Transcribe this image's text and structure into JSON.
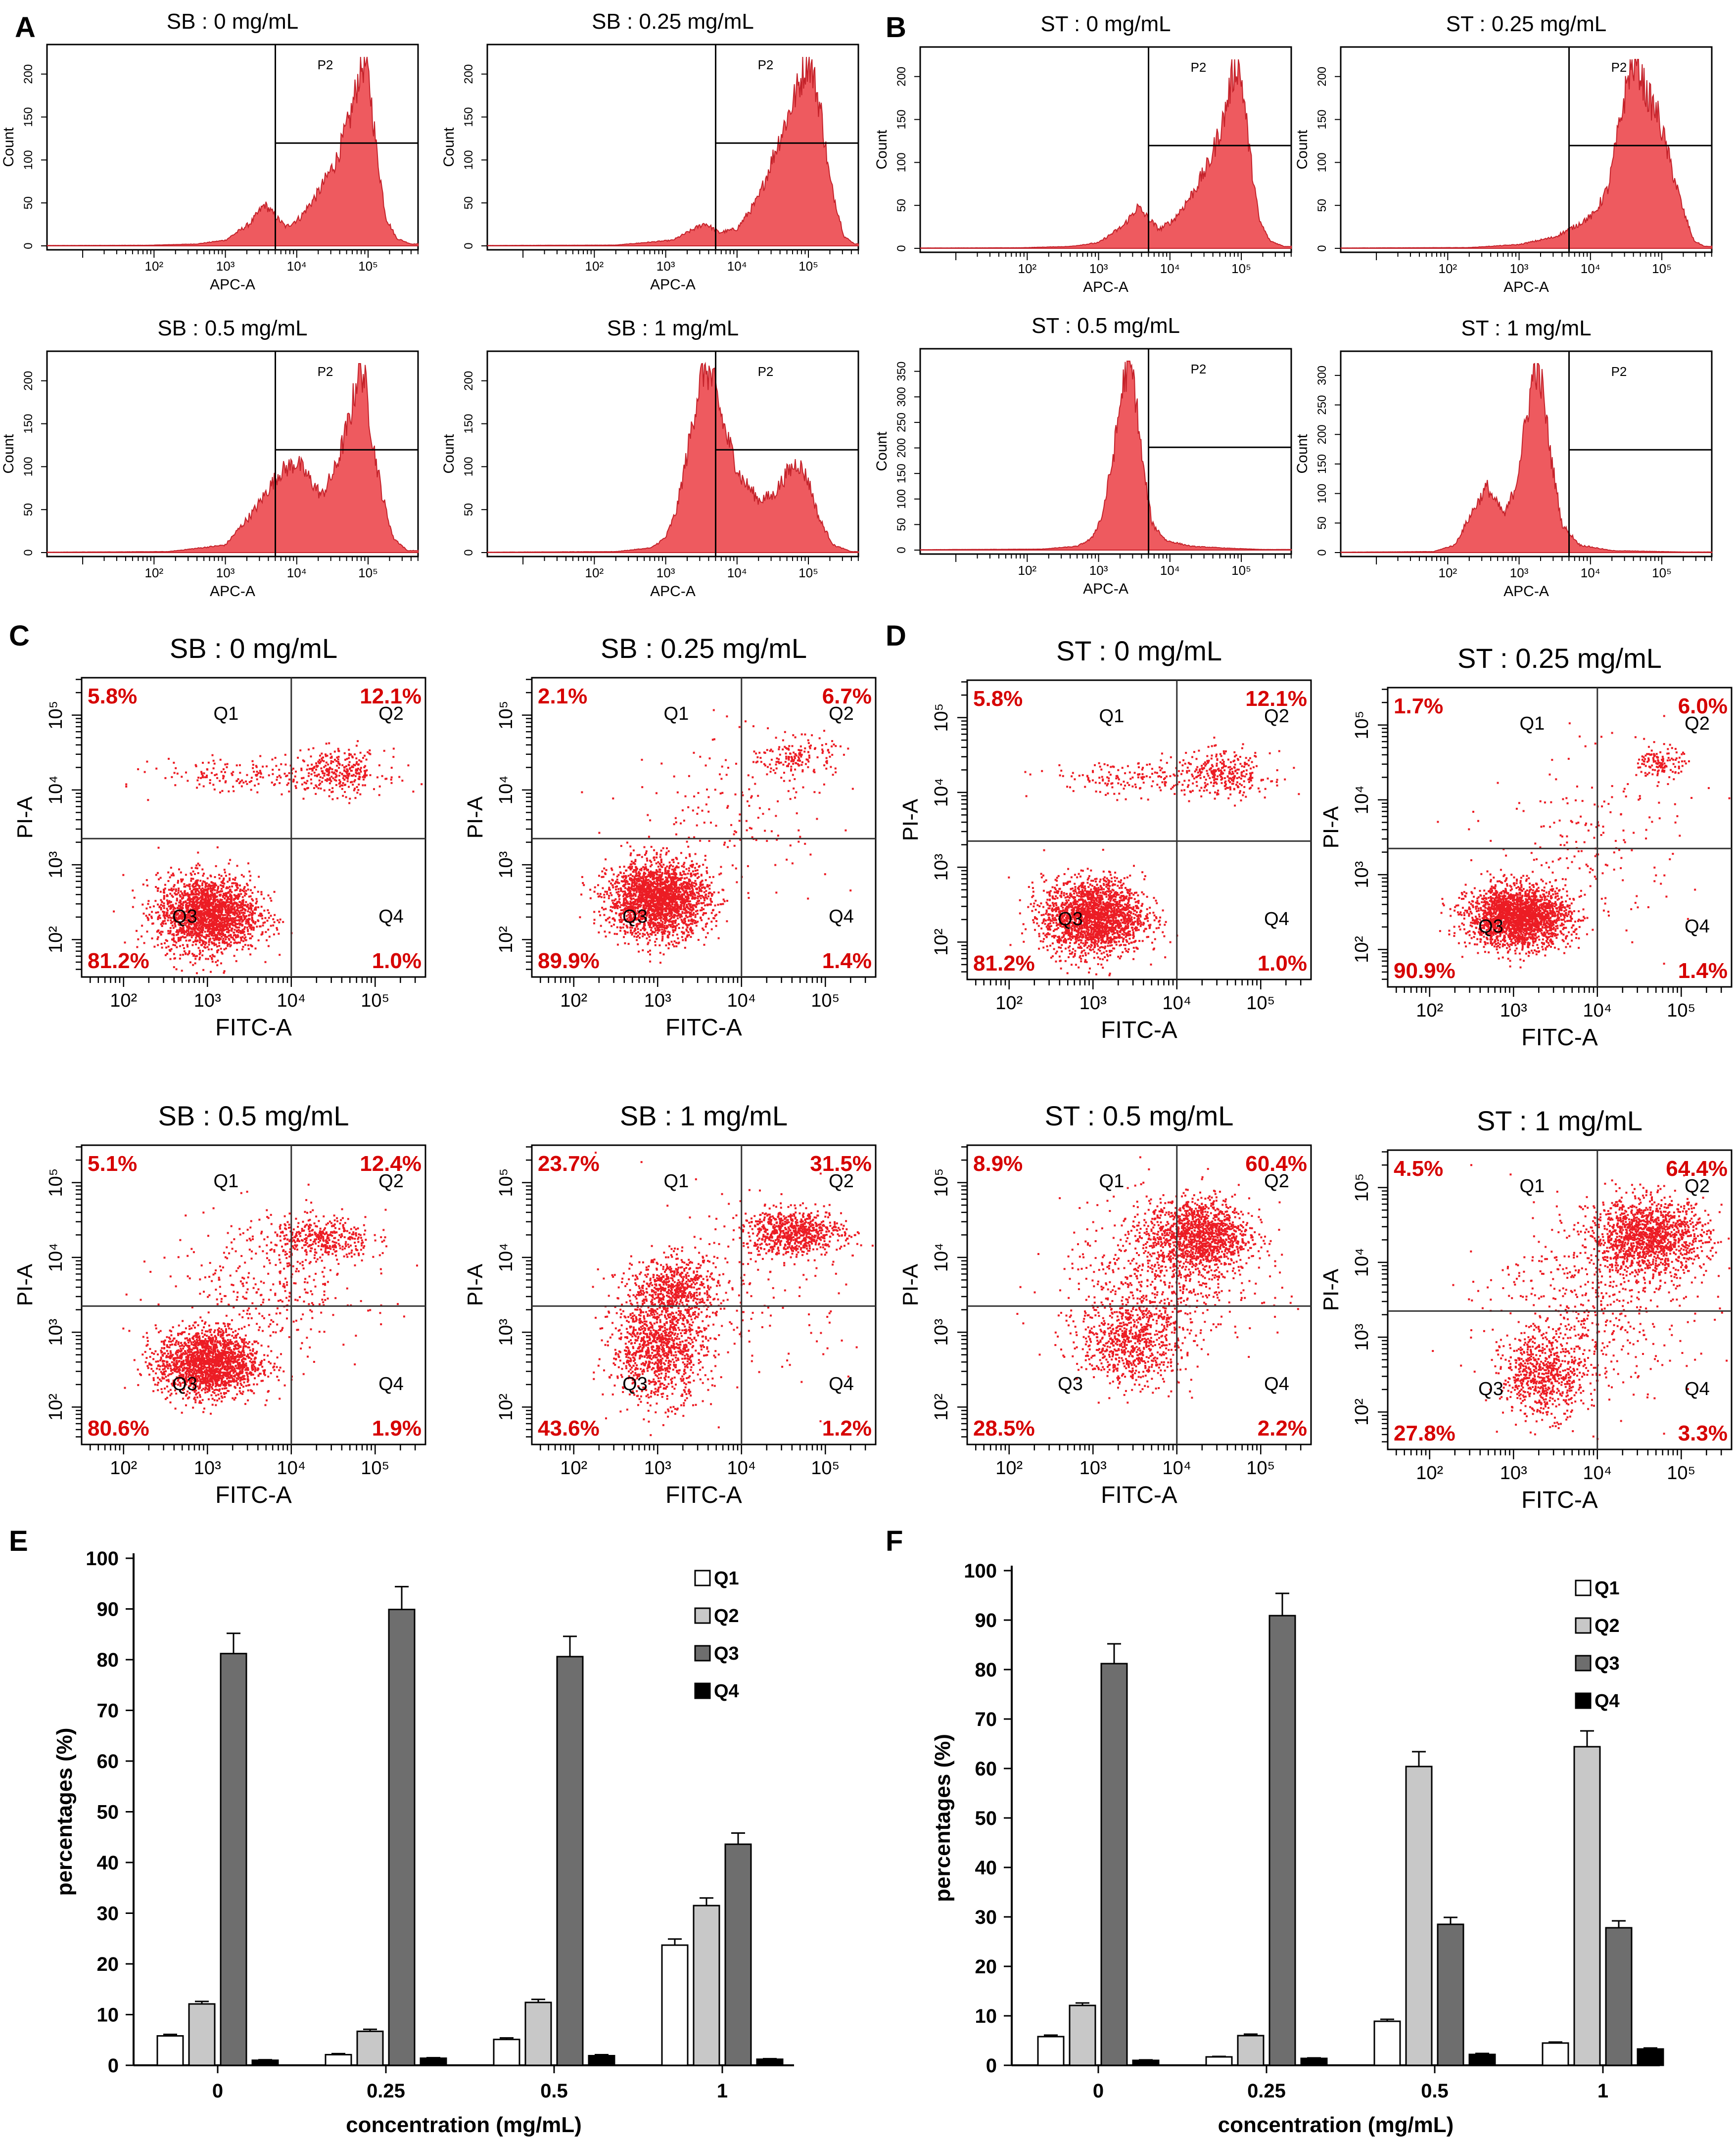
{
  "colors": {
    "histogram_fill": "#ee5a5f",
    "histogram_edge": "#c4222a",
    "dots": "#ec1c24",
    "quadrant_pct": "#d60000",
    "axis": "#000000",
    "bar_q1": "#ffffff",
    "bar_q2": "#c8c8c8",
    "bar_q3": "#6e6e6e",
    "bar_q4": "#000000"
  },
  "panel_letters": [
    "A",
    "B",
    "C",
    "D",
    "E",
    "F"
  ],
  "histograms": {
    "x_label": "APC-A",
    "y_label": "Count",
    "gate_label": "P2",
    "x_ticks": [
      "10²",
      "10³",
      "10⁴",
      "10⁵"
    ],
    "panels": [
      {
        "title": "SB : 0 mg/mL",
        "y_ticks": [
          "0",
          "50",
          "100",
          "150",
          "200"
        ],
        "profile": [
          [
            0.5,
            0.2
          ],
          [
            1.9,
            0.3
          ],
          [
            2.6,
            1.0
          ],
          [
            3.0,
            3.0
          ],
          [
            3.35,
            12.0
          ],
          [
            3.55,
            22.0
          ],
          [
            3.72,
            15.0
          ],
          [
            3.85,
            10.0
          ],
          [
            4.05,
            15.0
          ],
          [
            4.3,
            28.0
          ],
          [
            4.55,
            45.0
          ],
          [
            4.75,
            68.0
          ],
          [
            4.88,
            92.0
          ],
          [
            4.95,
            98.0
          ],
          [
            5.02,
            85.0
          ],
          [
            5.12,
            50.0
          ],
          [
            5.25,
            15.0
          ],
          [
            5.4,
            4.0
          ],
          [
            5.6,
            1.0
          ]
        ]
      },
      {
        "title": "SB : 0.25 mg/mL",
        "y_ticks": [
          "0",
          "50",
          "100",
          "150",
          "200"
        ],
        "profile": [
          [
            0.5,
            0.2
          ],
          [
            2.3,
            0.4
          ],
          [
            3.1,
            3.0
          ],
          [
            3.55,
            12.0
          ],
          [
            3.75,
            7.0
          ],
          [
            4.0,
            9.0
          ],
          [
            4.3,
            25.0
          ],
          [
            4.55,
            52.0
          ],
          [
            4.8,
            78.0
          ],
          [
            5.0,
            100.0
          ],
          [
            5.08,
            88.0
          ],
          [
            5.18,
            70.0
          ],
          [
            5.3,
            35.0
          ],
          [
            5.5,
            5.0
          ],
          [
            5.65,
            1.0
          ]
        ]
      },
      {
        "title": "SB : 0.5 mg/mL",
        "y_ticks": [
          "0",
          "50",
          "100",
          "150",
          "200"
        ],
        "profile": [
          [
            0.5,
            0.2
          ],
          [
            2.2,
            0.5
          ],
          [
            3.0,
            4.0
          ],
          [
            3.4,
            22.0
          ],
          [
            3.75,
            42.0
          ],
          [
            4.0,
            48.0
          ],
          [
            4.2,
            38.0
          ],
          [
            4.35,
            30.0
          ],
          [
            4.55,
            45.0
          ],
          [
            4.75,
            72.0
          ],
          [
            4.88,
            100.0
          ],
          [
            4.95,
            92.0
          ],
          [
            5.08,
            55.0
          ],
          [
            5.2,
            30.0
          ],
          [
            5.35,
            8.0
          ],
          [
            5.55,
            1.0
          ]
        ]
      },
      {
        "title": "SB : 1 mg/mL",
        "y_ticks": [
          "0",
          "50",
          "100",
          "150",
          "200"
        ],
        "profile": [
          [
            0.5,
            0.2
          ],
          [
            2.3,
            0.5
          ],
          [
            2.8,
            2.5
          ],
          [
            3.0,
            8.0
          ],
          [
            3.15,
            22.0
          ],
          [
            3.3,
            52.0
          ],
          [
            3.45,
            85.0
          ],
          [
            3.55,
            100.0
          ],
          [
            3.68,
            88.0
          ],
          [
            3.85,
            62.0
          ],
          [
            4.05,
            40.0
          ],
          [
            4.3,
            28.0
          ],
          [
            4.5,
            30.0
          ],
          [
            4.7,
            42.0
          ],
          [
            4.85,
            48.0
          ],
          [
            5.0,
            38.0
          ],
          [
            5.15,
            18.0
          ],
          [
            5.35,
            4.0
          ],
          [
            5.6,
            0.5
          ]
        ]
      },
      {
        "title": "ST : 0 mg/mL",
        "y_ticks": [
          "0",
          "50",
          "100",
          "150",
          "200"
        ],
        "profile": [
          [
            0.5,
            0.2
          ],
          [
            1.9,
            0.3
          ],
          [
            2.6,
            1.0
          ],
          [
            3.0,
            3.0
          ],
          [
            3.35,
            12.0
          ],
          [
            3.55,
            22.0
          ],
          [
            3.72,
            15.0
          ],
          [
            3.85,
            10.0
          ],
          [
            4.05,
            15.0
          ],
          [
            4.3,
            28.0
          ],
          [
            4.55,
            45.0
          ],
          [
            4.75,
            68.0
          ],
          [
            4.88,
            92.0
          ],
          [
            4.95,
            98.0
          ],
          [
            5.02,
            85.0
          ],
          [
            5.12,
            50.0
          ],
          [
            5.25,
            15.0
          ],
          [
            5.4,
            4.0
          ],
          [
            5.6,
            1.0
          ]
        ]
      },
      {
        "title": "ST : 0.25 mg/mL",
        "y_ticks": [
          "0",
          "50",
          "100",
          "150",
          "200"
        ],
        "profile": [
          [
            0.5,
            0.2
          ],
          [
            2.3,
            0.4
          ],
          [
            3.0,
            2.0
          ],
          [
            3.5,
            6.0
          ],
          [
            3.8,
            12.0
          ],
          [
            4.05,
            18.0
          ],
          [
            4.25,
            32.0
          ],
          [
            4.42,
            68.0
          ],
          [
            4.55,
            95.0
          ],
          [
            4.65,
            100.0
          ],
          [
            4.78,
            82.0
          ],
          [
            4.95,
            70.0
          ],
          [
            5.12,
            45.0
          ],
          [
            5.3,
            20.0
          ],
          [
            5.45,
            4.0
          ],
          [
            5.6,
            1.0
          ]
        ]
      },
      {
        "title": "ST : 0.5 mg/mL",
        "y_ticks": [
          "0",
          "50",
          "100",
          "150",
          "200",
          "250",
          "300",
          "350"
        ],
        "profile": [
          [
            0.5,
            0.2
          ],
          [
            2.2,
            0.5
          ],
          [
            2.7,
            2.0
          ],
          [
            2.9,
            6.0
          ],
          [
            3.05,
            18.0
          ],
          [
            3.2,
            48.0
          ],
          [
            3.33,
            85.0
          ],
          [
            3.42,
            100.0
          ],
          [
            3.5,
            88.0
          ],
          [
            3.62,
            45.0
          ],
          [
            3.75,
            14.0
          ],
          [
            3.95,
            5.0
          ],
          [
            4.3,
            2.0
          ],
          [
            4.8,
            1.0
          ],
          [
            5.3,
            0.3
          ]
        ]
      },
      {
        "title": "ST : 1 mg/mL",
        "y_ticks": [
          "0",
          "50",
          "100",
          "150",
          "200",
          "250",
          "300"
        ],
        "profile": [
          [
            0.5,
            0.2
          ],
          [
            1.8,
            0.5
          ],
          [
            2.1,
            4.0
          ],
          [
            2.35,
            22.0
          ],
          [
            2.55,
            35.0
          ],
          [
            2.65,
            28.0
          ],
          [
            2.8,
            20.0
          ],
          [
            2.95,
            35.0
          ],
          [
            3.1,
            70.0
          ],
          [
            3.22,
            100.0
          ],
          [
            3.32,
            88.0
          ],
          [
            3.45,
            50.0
          ],
          [
            3.6,
            15.0
          ],
          [
            3.85,
            4.0
          ],
          [
            4.3,
            1.0
          ],
          [
            5.3,
            0.3
          ]
        ]
      }
    ]
  },
  "scatter": {
    "x_label": "FITC-A",
    "y_label": "PI-A",
    "x_ticks": [
      "10²",
      "10³",
      "10⁴",
      "10⁵"
    ],
    "y_ticks": [
      "10²",
      "10³",
      "10⁴",
      "10⁵"
    ],
    "quadrant_labels": [
      "Q1",
      "Q2",
      "Q3",
      "Q4"
    ],
    "panels": [
      {
        "title": "SB : 0 mg/mL",
        "q1": "5.8%",
        "q2": "12.1%",
        "q3": "81.2%",
        "q4": "1.0%",
        "clusters": [
          [
            3.0,
            2.35,
            0.3,
            0.25,
            0.8
          ],
          [
            4.55,
            4.25,
            0.28,
            0.15,
            0.12
          ],
          [
            3.4,
            4.2,
            0.5,
            0.12,
            0.06
          ]
        ]
      },
      {
        "title": "SB : 0.25 mg/mL",
        "q1": "2.1%",
        "q2": "6.7%",
        "q3": "89.9%",
        "q4": "1.4%",
        "clusters": [
          [
            3.0,
            2.55,
            0.3,
            0.25,
            0.88
          ],
          [
            4.65,
            4.45,
            0.22,
            0.13,
            0.06
          ],
          [
            3.9,
            3.8,
            0.6,
            0.5,
            0.06
          ]
        ]
      },
      {
        "title": "ST : 0 mg/mL",
        "q1": "5.8%",
        "q2": "12.1%",
        "q3": "81.2%",
        "q4": "1.0%",
        "clusters": [
          [
            3.0,
            2.35,
            0.3,
            0.25,
            0.8
          ],
          [
            4.55,
            4.25,
            0.28,
            0.15,
            0.12
          ],
          [
            3.4,
            4.2,
            0.5,
            0.12,
            0.06
          ]
        ]
      },
      {
        "title": "ST : 0.25 mg/mL",
        "q1": "1.7%",
        "q2": "6.0%",
        "q3": "90.9%",
        "q4": "1.4%",
        "clusters": [
          [
            3.05,
            2.45,
            0.3,
            0.2,
            0.88
          ],
          [
            4.75,
            4.5,
            0.13,
            0.11,
            0.05
          ],
          [
            3.9,
            3.5,
            0.6,
            0.6,
            0.07
          ]
        ]
      },
      {
        "title": "SB : 0.5 mg/mL",
        "q1": "5.1%",
        "q2": "12.4%",
        "q3": "80.6%",
        "q4": "1.9%",
        "clusters": [
          [
            3.0,
            2.6,
            0.3,
            0.22,
            0.72
          ],
          [
            4.35,
            4.25,
            0.3,
            0.15,
            0.14
          ],
          [
            3.7,
            3.6,
            0.6,
            0.5,
            0.14
          ]
        ]
      },
      {
        "title": "SB : 1 mg/mL",
        "q1": "23.7%",
        "q2": "31.5%",
        "q3": "43.6%",
        "q4": "1.2%",
        "clusters": [
          [
            3.0,
            2.8,
            0.28,
            0.35,
            0.42
          ],
          [
            3.2,
            3.6,
            0.25,
            0.2,
            0.22
          ],
          [
            4.6,
            4.35,
            0.3,
            0.15,
            0.28
          ],
          [
            3.9,
            3.5,
            0.7,
            0.6,
            0.08
          ]
        ]
      },
      {
        "title": "ST : 0.5 mg/mL",
        "q1": "8.9%",
        "q2": "60.4%",
        "q3": "28.5%",
        "q4": "2.2%",
        "clusters": [
          [
            3.45,
            2.9,
            0.3,
            0.3,
            0.28
          ],
          [
            4.25,
            4.3,
            0.3,
            0.25,
            0.5
          ],
          [
            3.8,
            3.7,
            0.6,
            0.5,
            0.22
          ]
        ]
      },
      {
        "title": "ST : 1 mg/mL",
        "q1": "4.5%",
        "q2": "64.4%",
        "q3": "27.8%",
        "q4": "3.3%",
        "clusters": [
          [
            3.35,
            2.5,
            0.25,
            0.28,
            0.26
          ],
          [
            4.6,
            4.35,
            0.35,
            0.25,
            0.54
          ],
          [
            3.9,
            3.4,
            0.6,
            0.6,
            0.2
          ]
        ]
      }
    ]
  },
  "chart_data": [
    {
      "type": "bar",
      "panel": "E",
      "xlabel": "concentration (mg/mL)",
      "ylabel": "percentages (%)",
      "ylim": [
        0,
        100
      ],
      "y_ticks": [
        "0",
        "10",
        "20",
        "30",
        "40",
        "50",
        "60",
        "70",
        "80",
        "90",
        "100"
      ],
      "categories": [
        "0",
        "0.25",
        "0.5",
        "1"
      ],
      "legend_position": "top-right",
      "series": [
        {
          "name": "Q1",
          "values": [
            5.8,
            2.1,
            5.1,
            23.7
          ],
          "errors": [
            0.3,
            0.2,
            0.3,
            1.2
          ]
        },
        {
          "name": "Q2",
          "values": [
            12.1,
            6.7,
            12.4,
            31.5
          ],
          "errors": [
            0.5,
            0.4,
            0.6,
            1.5
          ]
        },
        {
          "name": "Q3",
          "values": [
            81.2,
            89.9,
            80.6,
            43.6
          ],
          "errors": [
            4.0,
            4.5,
            4.0,
            2.2
          ]
        },
        {
          "name": "Q4",
          "values": [
            1.0,
            1.4,
            1.9,
            1.2
          ],
          "errors": [
            0.1,
            0.1,
            0.2,
            0.1
          ]
        }
      ]
    },
    {
      "type": "bar",
      "panel": "F",
      "xlabel": "concentration (mg/mL)",
      "ylabel": "percentages (%)",
      "ylim": [
        0,
        100
      ],
      "y_ticks": [
        "0",
        "10",
        "20",
        "30",
        "40",
        "50",
        "60",
        "70",
        "80",
        "90",
        "100"
      ],
      "categories": [
        "0",
        "0.25",
        "0.5",
        "1"
      ],
      "legend_position": "top-right",
      "series": [
        {
          "name": "Q1",
          "values": [
            5.8,
            1.7,
            8.9,
            4.5
          ],
          "errors": [
            0.3,
            0.1,
            0.4,
            0.2
          ]
        },
        {
          "name": "Q2",
          "values": [
            12.1,
            6.0,
            60.4,
            64.4
          ],
          "errors": [
            0.5,
            0.3,
            3.0,
            3.2
          ]
        },
        {
          "name": "Q3",
          "values": [
            81.2,
            90.9,
            28.5,
            27.8
          ],
          "errors": [
            4.0,
            4.5,
            1.4,
            1.4
          ]
        },
        {
          "name": "Q4",
          "values": [
            1.0,
            1.4,
            2.2,
            3.3
          ],
          "errors": [
            0.1,
            0.1,
            0.2,
            0.2
          ]
        }
      ]
    }
  ]
}
